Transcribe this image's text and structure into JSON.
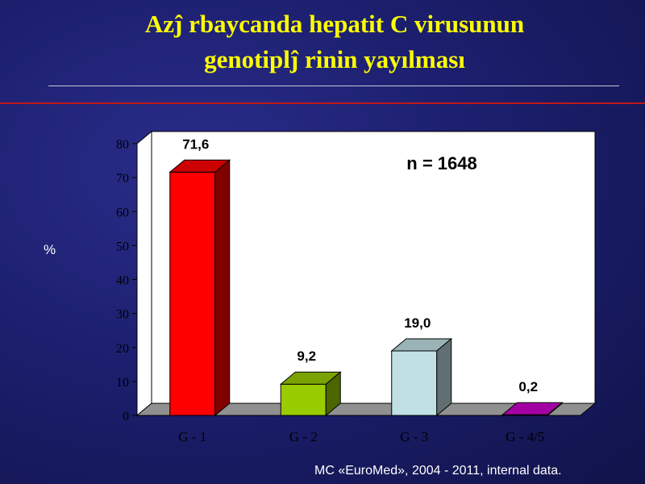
{
  "slide": {
    "title_line1": "Azĵ rbaycanda hepatit C virusunun",
    "title_line2": "genotiplĵ rinin yayılması",
    "footer": "MC «EuroMed», 2004 - 2011, internal data."
  },
  "chart_data": {
    "type": "bar",
    "categories": [
      "G - 1",
      "G - 2",
      "G - 3",
      "G - 4/5"
    ],
    "values": [
      71.6,
      9.2,
      19.0,
      0.2
    ],
    "value_labels": [
      "71,6",
      "9,2",
      "19,0",
      "0,2"
    ],
    "ylabel": "%",
    "ylim": [
      0,
      80
    ],
    "yticks": [
      0,
      10,
      20,
      30,
      40,
      50,
      60,
      70,
      80
    ],
    "annotation": "n = 1648",
    "bar_colors": [
      "#ff0000",
      "#99cc00",
      "#c0e0e4",
      "#cc00cc"
    ],
    "plot_background": "#ffffff",
    "floor_color": "#909090",
    "grid": false,
    "bar_style": "3d"
  }
}
